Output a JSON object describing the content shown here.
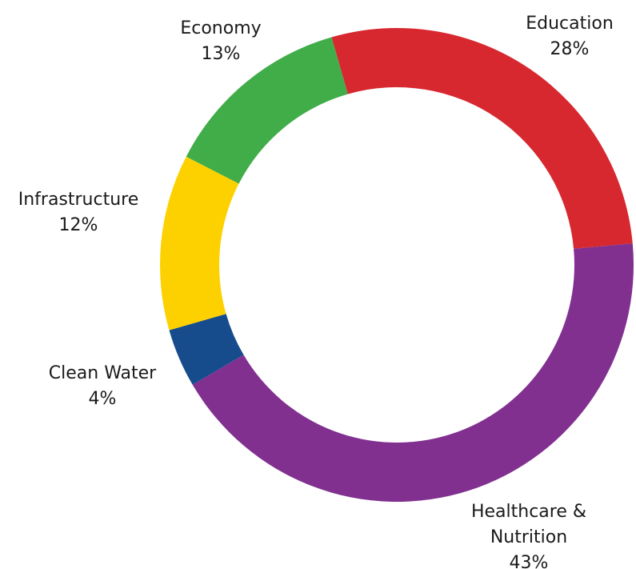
{
  "chart_data": {
    "type": "pie",
    "variant": "donut",
    "title": "",
    "unit": "%",
    "slices": [
      {
        "name": "Education",
        "label_lines": [
          "Education"
        ],
        "value": 28,
        "value_label": "28%",
        "color": "#d7282f"
      },
      {
        "name": "Healthcare & Nutrition",
        "label_lines": [
          "Healthcare &",
          "Nutrition"
        ],
        "value": 43,
        "value_label": "43%",
        "color": "#813090"
      },
      {
        "name": "Clean Water",
        "label_lines": [
          "Clean Water"
        ],
        "value": 4,
        "value_label": "4%",
        "color": "#174c8c"
      },
      {
        "name": "Infrastructure",
        "label_lines": [
          "Infrastructure"
        ],
        "value": 12,
        "value_label": "12%",
        "color": "#fdd100"
      },
      {
        "name": "Economy",
        "label_lines": [
          "Economy"
        ],
        "value": 13,
        "value_label": "13%",
        "color": "#41ad49"
      }
    ],
    "legend": "none",
    "labels_position": "outside"
  }
}
